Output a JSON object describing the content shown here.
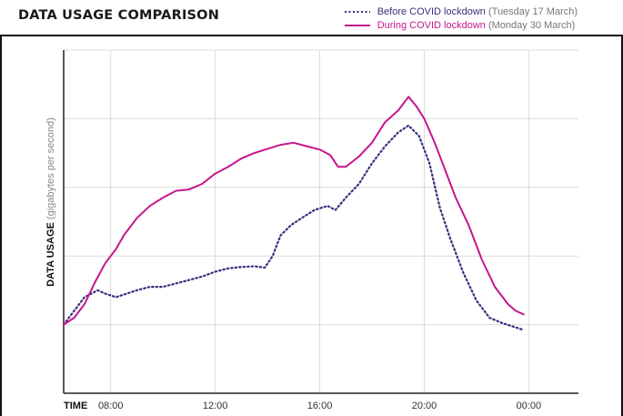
{
  "chart_data": {
    "type": "line",
    "title": "DATA USAGE COMPARISON",
    "xlabel": "TIME",
    "ylabel": "DATA USAGE",
    "ylabel_unit": "(gigabytes per second)",
    "x_tick_labels": [
      "08:00",
      "12:00",
      "16:00",
      "20:00",
      "00:00"
    ],
    "x_ticks": [
      8,
      12,
      16,
      20,
      24
    ],
    "xlim": [
      6.2,
      25.9
    ],
    "ylim": [
      0,
      5
    ],
    "y_tick_labels_shown": false,
    "grid": true,
    "legend_position": "top-right",
    "series": [
      {
        "name": "Before COVID lockdown",
        "date": "(Tuesday 17 March)",
        "style": "dotted",
        "color": "#3a2d7f",
        "points": [
          [
            6.2,
            1.0
          ],
          [
            6.6,
            1.2
          ],
          [
            7.0,
            1.4
          ],
          [
            7.5,
            1.5
          ],
          [
            7.8,
            1.45
          ],
          [
            8.2,
            1.4
          ],
          [
            8.6,
            1.45
          ],
          [
            9.0,
            1.5
          ],
          [
            9.5,
            1.55
          ],
          [
            10.0,
            1.55
          ],
          [
            10.5,
            1.6
          ],
          [
            11.0,
            1.65
          ],
          [
            11.5,
            1.7
          ],
          [
            12.0,
            1.77
          ],
          [
            12.5,
            1.82
          ],
          [
            13.0,
            1.84
          ],
          [
            13.5,
            1.85
          ],
          [
            13.9,
            1.83
          ],
          [
            14.2,
            2.0
          ],
          [
            14.5,
            2.3
          ],
          [
            14.9,
            2.45
          ],
          [
            15.3,
            2.55
          ],
          [
            15.8,
            2.67
          ],
          [
            16.3,
            2.73
          ],
          [
            16.6,
            2.67
          ],
          [
            17.0,
            2.85
          ],
          [
            17.5,
            3.05
          ],
          [
            18.0,
            3.35
          ],
          [
            18.5,
            3.6
          ],
          [
            19.0,
            3.8
          ],
          [
            19.4,
            3.9
          ],
          [
            19.8,
            3.75
          ],
          [
            20.2,
            3.35
          ],
          [
            20.6,
            2.7
          ],
          [
            21.0,
            2.25
          ],
          [
            21.5,
            1.75
          ],
          [
            22.0,
            1.35
          ],
          [
            22.5,
            1.1
          ],
          [
            23.0,
            1.02
          ],
          [
            23.5,
            0.96
          ],
          [
            23.8,
            0.92
          ]
        ]
      },
      {
        "name": "During COVID lockdown",
        "date": "(Monday 30 March)",
        "style": "solid",
        "color": "#c6168d",
        "points": [
          [
            6.2,
            1.0
          ],
          [
            6.6,
            1.1
          ],
          [
            7.0,
            1.3
          ],
          [
            7.4,
            1.62
          ],
          [
            7.8,
            1.9
          ],
          [
            8.2,
            2.1
          ],
          [
            8.5,
            2.3
          ],
          [
            9.0,
            2.55
          ],
          [
            9.5,
            2.73
          ],
          [
            10.0,
            2.85
          ],
          [
            10.5,
            2.95
          ],
          [
            11.0,
            2.97
          ],
          [
            11.5,
            3.05
          ],
          [
            12.0,
            3.2
          ],
          [
            12.5,
            3.3
          ],
          [
            13.0,
            3.42
          ],
          [
            13.5,
            3.5
          ],
          [
            14.0,
            3.56
          ],
          [
            14.5,
            3.62
          ],
          [
            15.0,
            3.65
          ],
          [
            15.5,
            3.6
          ],
          [
            16.0,
            3.55
          ],
          [
            16.4,
            3.47
          ],
          [
            16.7,
            3.3
          ],
          [
            17.0,
            3.3
          ],
          [
            17.5,
            3.45
          ],
          [
            18.0,
            3.65
          ],
          [
            18.5,
            3.95
          ],
          [
            19.0,
            4.12
          ],
          [
            19.4,
            4.32
          ],
          [
            19.7,
            4.18
          ],
          [
            20.0,
            4.0
          ],
          [
            20.4,
            3.65
          ],
          [
            20.8,
            3.25
          ],
          [
            21.2,
            2.85
          ],
          [
            21.7,
            2.45
          ],
          [
            22.2,
            1.95
          ],
          [
            22.7,
            1.55
          ],
          [
            23.2,
            1.3
          ],
          [
            23.5,
            1.2
          ],
          [
            23.8,
            1.15
          ]
        ]
      }
    ]
  }
}
